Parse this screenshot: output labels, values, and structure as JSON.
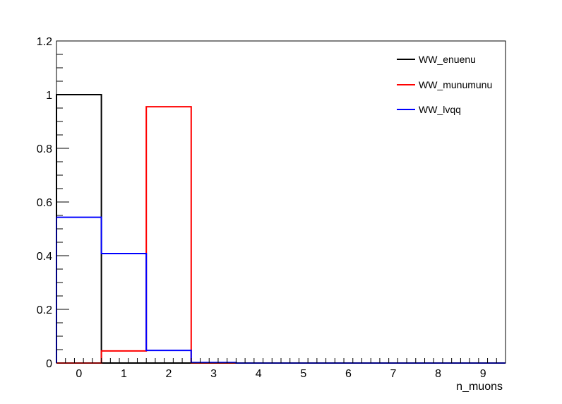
{
  "chart_data": {
    "type": "histogram-step",
    "xlabel": "n_muons",
    "ylabel": "",
    "xlim": [
      -0.5,
      9.5
    ],
    "ylim": [
      0,
      1.2
    ],
    "bin_edges": [
      -0.5,
      0.5,
      1.5,
      2.5,
      3.5,
      4.5,
      5.5,
      6.5,
      7.5,
      8.5,
      9.5
    ],
    "x_ticks": [
      "0",
      "1",
      "2",
      "3",
      "4",
      "5",
      "6",
      "7",
      "8",
      "9"
    ],
    "y_ticks": [
      "0",
      "0.2",
      "0.4",
      "0.6",
      "0.8",
      "1",
      "1.2"
    ],
    "grid": false,
    "legend_position": "top-right",
    "series": [
      {
        "name": "WW_enuenu",
        "color": "#000000",
        "values": [
          1.0,
          0,
          0,
          0,
          0,
          0,
          0,
          0,
          0,
          0
        ]
      },
      {
        "name": "WW_munumunu",
        "color": "#ff0000",
        "values": [
          0,
          0.045,
          0.955,
          0,
          0,
          0,
          0,
          0,
          0,
          0
        ]
      },
      {
        "name": "WW_lvqq",
        "color": "#0000ff",
        "values": [
          0.543,
          0.408,
          0.047,
          0.002,
          0,
          0,
          0,
          0,
          0,
          0
        ]
      }
    ]
  }
}
